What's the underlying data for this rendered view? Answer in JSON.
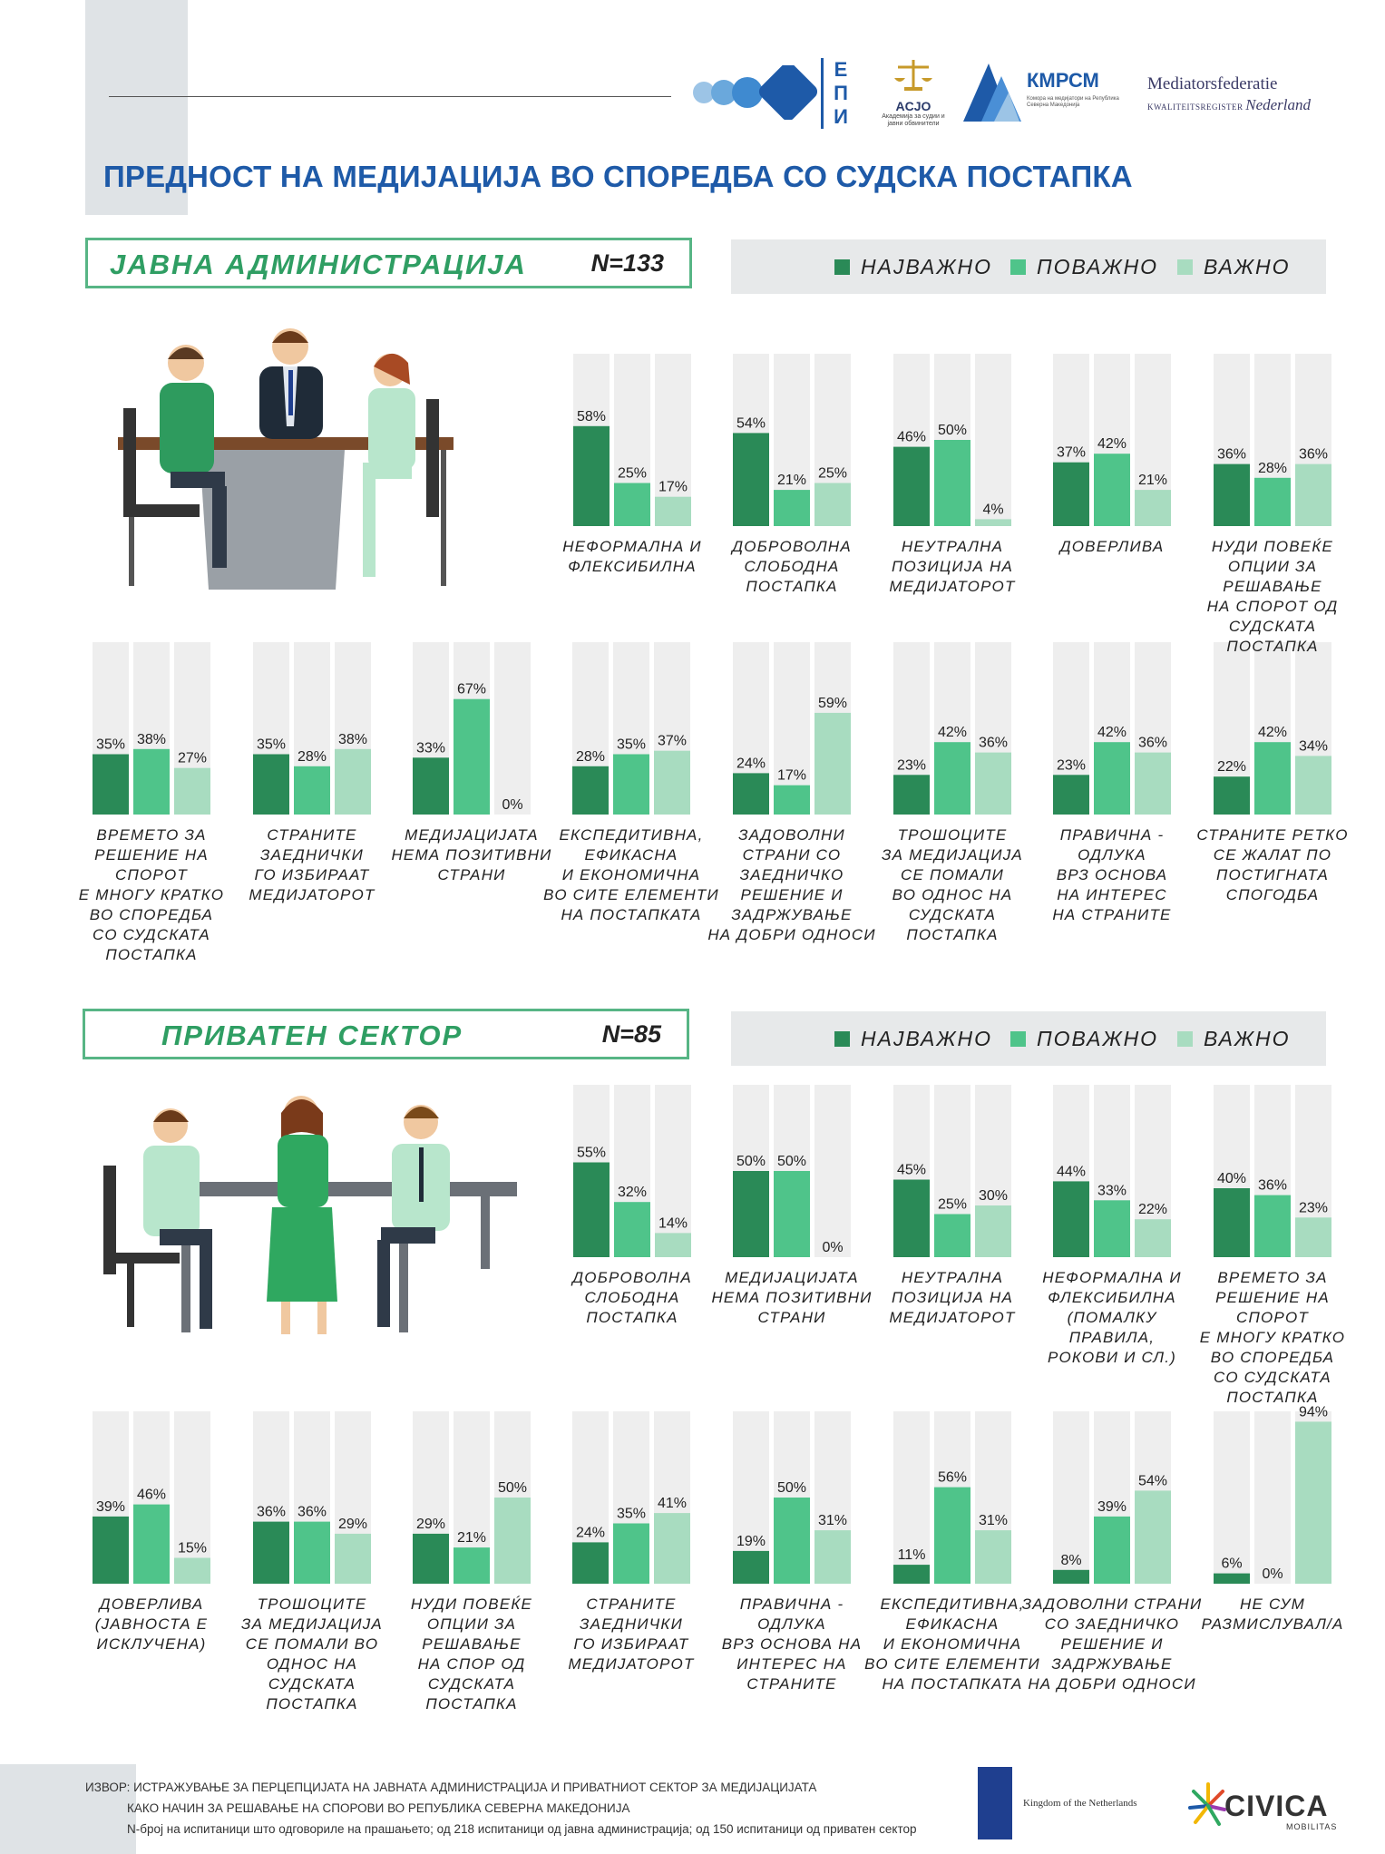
{
  "header": {
    "title": "ПРЕДНОСТ НА МЕДИЈАЦИЈА ВО СПОРЕДБА СО СУДСКА ПОСТАПКА",
    "logos": {
      "epi_text": "ЕПИ",
      "acjo_text": "ACJO",
      "acjo_sub": "Академија за судии и јавни обвинители",
      "kmpcm_text": "КМРСМ",
      "kmpcm_sub": "Комора на медијатори на Република Северна Македонија",
      "mf_line1": "Mediatorsfederatie",
      "mf_line2a": "KWALITEITSREGISTER",
      "mf_line2b": "Nederland"
    }
  },
  "legend": {
    "most": "НАЈВАЖНО",
    "more": "ПОВАЖНО",
    "important": "ВАЖНО"
  },
  "colors": {
    "most": "#2a8a57",
    "more": "#4fc48a",
    "important": "#a8dcc0",
    "track": "#eeeeee",
    "accent": "#1e5aa8"
  },
  "sections": [
    {
      "title": "ЈАВНА АДМИНИСТРАЦИЈА",
      "n": "N=133"
    },
    {
      "title": "ПРИВАТЕН СЕКТОР",
      "n": "N=85"
    }
  ],
  "chart_data": [
    {
      "type": "bar",
      "series": [
        {
          "name": "НАЈВАЖНО",
          "values": [
            58,
            54,
            46,
            37,
            36,
            35,
            35,
            33,
            28,
            24,
            23,
            23,
            22
          ]
        },
        {
          "name": "ПОВАЖНО",
          "values": [
            25,
            21,
            50,
            42,
            28,
            38,
            28,
            67,
            35,
            17,
            42,
            42,
            42
          ]
        },
        {
          "name": "ВАЖНО",
          "values": [
            17,
            25,
            4,
            21,
            36,
            27,
            38,
            0,
            37,
            59,
            36,
            36,
            34
          ]
        }
      ],
      "categories": [
        [
          "НЕФОРМАЛНА И",
          "ФЛЕКСИБИЛНА"
        ],
        [
          "ДОБРОВОЛНА",
          "СЛОБОДНА",
          "ПОСТАПКА"
        ],
        [
          "НЕУТРАЛНА",
          "ПОЗИЦИЈА НА",
          "МЕДИЈАТОРОТ"
        ],
        [
          "ДОВЕРЛИВА"
        ],
        [
          "НУДИ ПОВЕЌЕ",
          "ОПЦИИ ЗА РЕШАВАЊЕ",
          "НА СПОРОТ ОД",
          "СУДСКАТА ПОСТАПКА"
        ],
        [
          "ВРЕМЕТО ЗА",
          "РЕШЕНИЕ НА СПОРОТ",
          "Е МНОГУ КРАТКО",
          "ВО СПОРЕДБА",
          "СО СУДСКАТА",
          "ПОСТАПКА"
        ],
        [
          "СТРАНИТЕ",
          "ЗАЕДНИЧКИ",
          "ГО ИЗБИРААТ",
          "МЕДИЈАТОРОТ"
        ],
        [
          "МЕДИЈАЦИЈАТА",
          "НЕМА ПОЗИТИВНИ",
          "СТРАНИ"
        ],
        [
          "ЕКСПЕДИТИВНА,",
          "ЕФИКАСНА",
          "И ЕКОНОМИЧНА",
          "ВО СИТЕ ЕЛЕМЕНТИ",
          "НА ПОСТАПКАТА"
        ],
        [
          "ЗАДОВОЛНИ",
          "СТРАНИ СО",
          "ЗАЕДНИЧКО",
          "РЕШЕНИЕ И",
          "ЗАДРЖУВАЊЕ",
          "НА ДОБРИ ОДНОСИ"
        ],
        [
          "ТРОШОЦИТЕ",
          "ЗА МЕДИЈАЦИЈА",
          "СЕ ПОМАЛИ",
          "ВО ОДНОС НА",
          "СУДСКАТА",
          "ПОСТАПКА"
        ],
        [
          "ПРАВИЧНА -",
          "ОДЛУКА",
          "ВРЗ ОСНОВА",
          "НА ИНТЕРЕС",
          "НА СТРАНИТЕ"
        ],
        [
          "СТРАНИТЕ РЕТКО",
          "СЕ ЖАЛАТ ПО",
          "ПОСТИГНАТА",
          "СПОГОДБА"
        ]
      ],
      "unit": "%",
      "ylim": [
        0,
        100
      ]
    },
    {
      "type": "bar",
      "series": [
        {
          "name": "НАЈВАЖНО",
          "values": [
            55,
            50,
            45,
            44,
            40,
            39,
            36,
            29,
            24,
            19,
            11,
            8,
            6
          ]
        },
        {
          "name": "ПОВАЖНО",
          "values": [
            32,
            50,
            25,
            33,
            36,
            46,
            36,
            21,
            35,
            50,
            56,
            39,
            0
          ]
        },
        {
          "name": "ВАЖНО",
          "values": [
            14,
            0,
            30,
            22,
            23,
            15,
            29,
            50,
            41,
            31,
            31,
            54,
            94
          ]
        }
      ],
      "categories": [
        [
          "ДОБРОВОЛНА",
          "СЛОБОДНА",
          "ПОСТАПКА"
        ],
        [
          "МЕДИЈАЦИЈАТА",
          "НЕМА ПОЗИТИВНИ",
          "СТРАНИ"
        ],
        [
          "НЕУТРАЛНА",
          "ПОЗИЦИЈА НА",
          "МЕДИЈАТОРОТ"
        ],
        [
          "НЕФОРМАЛНА И",
          "ФЛЕКСИБИЛНА",
          "(ПОМАЛКУ",
          "ПРАВИЛА,",
          "РОКОВИ И СЛ.)"
        ],
        [
          "ВРЕМЕТО ЗА",
          "РЕШЕНИЕ НА СПОРОТ",
          "Е МНОГУ КРАТКО",
          "ВО СПОРЕДБА",
          "СО СУДСКАТА",
          "ПОСТАПКА"
        ],
        [
          "ДОВЕРЛИВА",
          "(ЈАВНОСТА Е",
          "ИСКЛУЧЕНА)"
        ],
        [
          "ТРОШОЦИТЕ",
          "ЗА МЕДИЈАЦИЈА",
          "СЕ ПОМАЛИ ВО",
          "ОДНОС НА СУДСКАТА",
          "ПОСТАПКА"
        ],
        [
          "НУДИ ПОВЕЌЕ",
          "ОПЦИИ ЗА",
          "РЕШАВАЊЕ",
          "НА СПОР ОД",
          "СУДСКАТА",
          "ПОСТАПКА"
        ],
        [
          "СТРАНИТЕ",
          "ЗАЕДНИЧКИ",
          "ГО ИЗБИРААТ",
          "МЕДИЈАТОРОТ"
        ],
        [
          "ПРАВИЧНА -",
          "ОДЛУКА",
          "ВРЗ ОСНОВА НА",
          "ИНТЕРЕС НА",
          "СТРАНИТЕ"
        ],
        [
          "ЕКСПЕДИТИВНА,",
          "ЕФИКАСНА",
          "И ЕКОНОМИЧНА",
          "ВО СИТЕ ЕЛЕМЕНТИ",
          "НА ПОСТАПКАТА"
        ],
        [
          "ЗАДОВОЛНИ СТРАНИ",
          "СО ЗАЕДНИЧКО",
          "РЕШЕНИЕ И",
          "ЗАДРЖУВАЊЕ",
          "НА ДОБРИ ОДНОСИ"
        ],
        [
          "НЕ СУМ",
          "РАЗМИСЛУВАЛ/А"
        ]
      ],
      "unit": "%",
      "ylim": [
        0,
        100
      ]
    }
  ],
  "footer": {
    "source_line1": "ИЗВОР: ИСТРАЖУВАЊЕ ЗА ПЕРЦЕПЦИЈАТА НА ЈАВНАТА АДМИНИСТРАЦИЈА И ПРИВАТНИОТ СЕКТОР ЗА МЕДИЈАЦИЈАТА",
    "source_line2": "КАКО НАЧИН ЗА РЕШАВАЊЕ НА СПОРОВИ ВО РЕПУБЛИКА СЕВЕРНА МАКЕДОНИЈА",
    "source_line3": "N-број на испитаници што одговориле на прашањето; од 218 испитаници од јавна администрација; од 150 испитаници од приватен сектор",
    "nl_text": "Kingdom of the Netherlands",
    "civica_text": "CIVICA",
    "civica_sub": "MOBILITAS"
  }
}
